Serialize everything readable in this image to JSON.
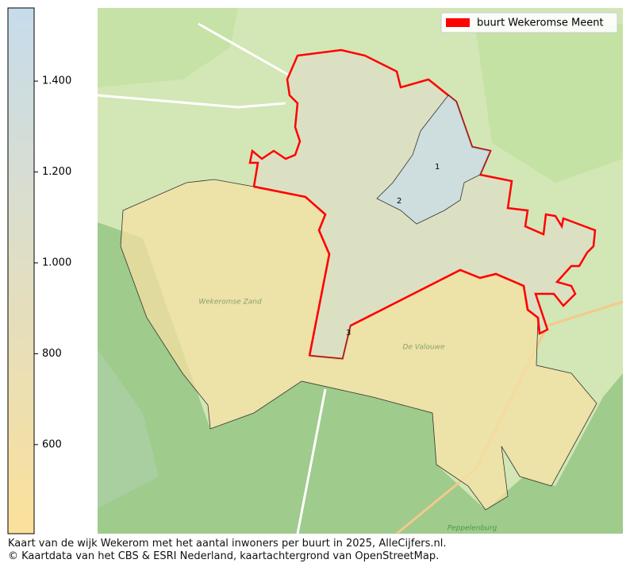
{
  "colorbar": {
    "lim": [
      404,
      1561
    ],
    "ticks": [
      {
        "value": 1400,
        "label": "1.400"
      },
      {
        "value": 1200,
        "label": "1.200"
      },
      {
        "value": 1000,
        "label": "1.000"
      },
      800,
      600
    ],
    "color_low": "#fbe09a",
    "color_high": "#c6dcec"
  },
  "legend": {
    "label": "buurt Wekeromse Meent",
    "color": "#ff0000"
  },
  "regions": [
    {
      "label": "2",
      "value": 1020
    },
    {
      "label": "1",
      "value": 1450
    },
    {
      "label": "3",
      "value": 520
    }
  ],
  "places": [
    "Wekeromse Zand",
    "De Valouwe",
    "Peppelenburg"
  ],
  "caption": [
    "Kaart van de wijk Wekerom met het aantal inwoners per buurt in 2025, AlleCijfers.nl.",
    "© Kaartdata van het CBS & ESRI Nederland, kaartachtergrond van OpenStreetMap."
  ]
}
